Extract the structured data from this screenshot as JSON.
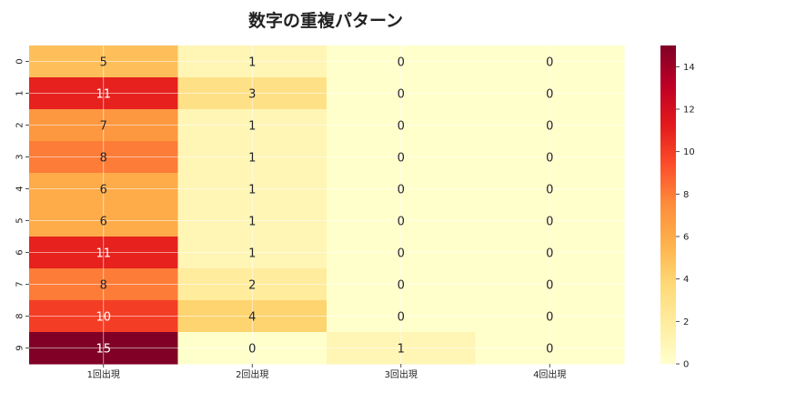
{
  "chart_data": {
    "type": "heatmap",
    "title": "数字の重複パターン",
    "xlabel": "",
    "ylabel": "",
    "columns": [
      "1回出現",
      "2回出現",
      "3回出現",
      "4回出現"
    ],
    "rows": [
      "0",
      "1",
      "2",
      "3",
      "4",
      "5",
      "6",
      "7",
      "8",
      "9"
    ],
    "values": [
      [
        5,
        1,
        0,
        0
      ],
      [
        11,
        3,
        0,
        0
      ],
      [
        7,
        1,
        0,
        0
      ],
      [
        8,
        1,
        0,
        0
      ],
      [
        6,
        1,
        0,
        0
      ],
      [
        6,
        1,
        0,
        0
      ],
      [
        11,
        1,
        0,
        0
      ],
      [
        8,
        2,
        0,
        0
      ],
      [
        10,
        4,
        0,
        0
      ],
      [
        15,
        0,
        1,
        0
      ]
    ],
    "colormap": "YlOrRd",
    "vmin": 0,
    "vmax": 15,
    "colorbar_ticks": [
      0,
      2,
      4,
      6,
      8,
      10,
      12,
      14
    ],
    "grid": true
  }
}
